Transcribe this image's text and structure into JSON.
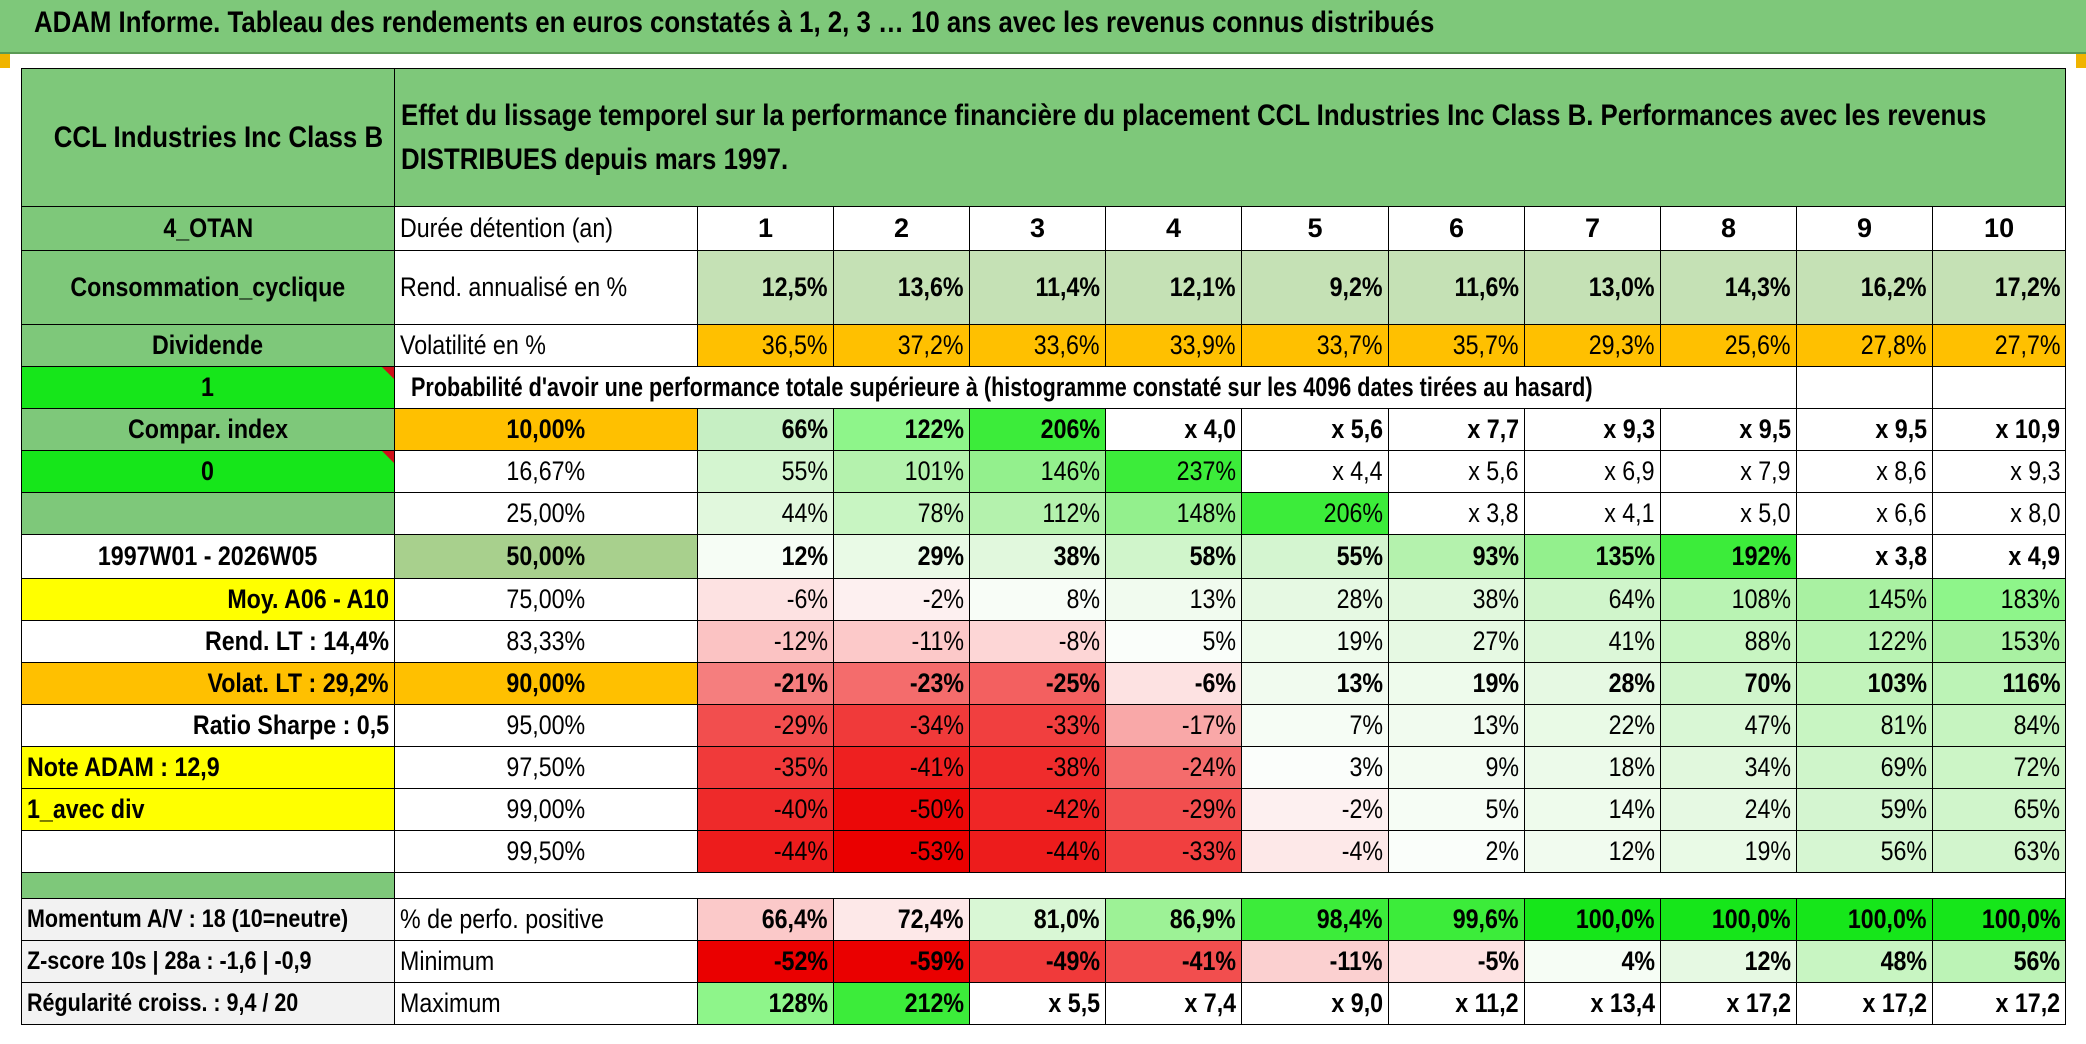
{
  "title": "ADAM Informe. Tableau des rendements en euros constatés à 1, 2, 3 … 10 ans avec les revenus connus distribués",
  "fund_name": "CCL Industries Inc Class B",
  "description": "Effet du lissage temporel sur la performance financière du placement CCL Industries Inc Class B. Performances avec les revenus DISTRIBUES depuis mars 1997.",
  "left_labels": {
    "code": "4_OTAN",
    "sector": "Consommation_cyclique",
    "type": "Dividende",
    "one": "1",
    "compar_index": "Compar. index",
    "zero": "0",
    "period": "1997W01 - 2026W05",
    "moy": "Moy. A06 - A10",
    "rend_lt": "Rend. LT :   14,4%",
    "volat_lt": "Volat. LT :   29,2%",
    "sharpe": "Ratio Sharpe :    0,5",
    "note": "Note ADAM : 12,9",
    "avec_div": "1_avec div",
    "momentum": "Momentum A/V : 18 (10=neutre)",
    "zscore": "Z-score 10s | 28a : -1,6 | -0,9",
    "regularite": "Régularité croiss. : 9,4 / 20"
  },
  "row_labels": {
    "duree": "Durée détention (an)",
    "rend": "Rend. annualisé en %",
    "volat": "Volatilité en %",
    "proba": "Probabilité d'avoir une performance totale supérieure à (histogramme constaté sur les 4096 dates tirées au hasard)",
    "perfo_pos": "% de perfo. positive",
    "minimum": "Minimum",
    "maximum": "Maximum"
  },
  "years": [
    "1",
    "2",
    "3",
    "4",
    "5",
    "6",
    "7",
    "8",
    "9",
    "10"
  ],
  "rend_values": [
    "12,5%",
    "13,6%",
    "11,4%",
    "12,1%",
    "9,2%",
    "11,6%",
    "13,0%",
    "14,3%",
    "16,2%",
    "17,2%"
  ],
  "volat_values": [
    "36,5%",
    "37,2%",
    "33,6%",
    "33,9%",
    "33,7%",
    "35,7%",
    "29,3%",
    "25,6%",
    "27,8%",
    "27,7%"
  ],
  "proba_rows": [
    {
      "level": "10,00%",
      "values": [
        "66%",
        "122%",
        "206%",
        "x 4,0",
        "x 5,6",
        "x 7,7",
        "x 9,3",
        "x 9,5",
        "x 9,5",
        "x 10,9"
      ]
    },
    {
      "level": "16,67%",
      "values": [
        "55%",
        "101%",
        "146%",
        "237%",
        "x 4,4",
        "x 5,6",
        "x 6,9",
        "x 7,9",
        "x 8,6",
        "x 9,3"
      ]
    },
    {
      "level": "25,00%",
      "values": [
        "44%",
        "78%",
        "112%",
        "148%",
        "206%",
        "x 3,8",
        "x 4,1",
        "x 5,0",
        "x 6,6",
        "x 8,0"
      ]
    },
    {
      "level": "50,00%",
      "values": [
        "12%",
        "29%",
        "38%",
        "58%",
        "55%",
        "93%",
        "135%",
        "192%",
        "x 3,8",
        "x 4,9"
      ]
    },
    {
      "level": "75,00%",
      "values": [
        "-6%",
        "-2%",
        "8%",
        "13%",
        "28%",
        "38%",
        "64%",
        "108%",
        "145%",
        "183%"
      ]
    },
    {
      "level": "83,33%",
      "values": [
        "-12%",
        "-11%",
        "-8%",
        "5%",
        "19%",
        "27%",
        "41%",
        "88%",
        "122%",
        "153%"
      ]
    },
    {
      "level": "90,00%",
      "values": [
        "-21%",
        "-23%",
        "-25%",
        "-6%",
        "13%",
        "19%",
        "28%",
        "70%",
        "103%",
        "116%"
      ]
    },
    {
      "level": "95,00%",
      "values": [
        "-29%",
        "-34%",
        "-33%",
        "-17%",
        "7%",
        "13%",
        "22%",
        "47%",
        "81%",
        "84%"
      ]
    },
    {
      "level": "97,50%",
      "values": [
        "-35%",
        "-41%",
        "-38%",
        "-24%",
        "3%",
        "9%",
        "18%",
        "34%",
        "69%",
        "72%"
      ]
    },
    {
      "level": "99,00%",
      "values": [
        "-40%",
        "-50%",
        "-42%",
        "-29%",
        "-2%",
        "5%",
        "14%",
        "24%",
        "59%",
        "65%"
      ]
    },
    {
      "level": "99,50%",
      "values": [
        "-44%",
        "-53%",
        "-44%",
        "-33%",
        "-4%",
        "2%",
        "12%",
        "19%",
        "56%",
        "63%"
      ]
    }
  ],
  "perfo_pos_values": [
    "66,4%",
    "72,4%",
    "81,0%",
    "86,9%",
    "98,4%",
    "99,6%",
    "100,0%",
    "100,0%",
    "100,0%",
    "100,0%"
  ],
  "minimum_values": [
    "-52%",
    "-59%",
    "-49%",
    "-41%",
    "-11%",
    "-5%",
    "4%",
    "12%",
    "48%",
    "56%"
  ],
  "maximum_values": [
    "128%",
    "212%",
    "x 5,5",
    "x 7,4",
    "x 9,0",
    "x 11,2",
    "x 13,4",
    "x 17,2",
    "x 17,2",
    "x 17,2"
  ],
  "cell_colors": {
    "proba": [
      [
        "#c6efc3",
        "#8ef58a",
        "#3cec3a",
        "#ffffff",
        "#ffffff",
        "#ffffff",
        "#ffffff",
        "#ffffff",
        "#ffffff",
        "#ffffff"
      ],
      [
        "#d4f5d0",
        "#b4f2ad",
        "#93f08d",
        "#3cec3a",
        "#ffffff",
        "#ffffff",
        "#ffffff",
        "#ffffff",
        "#ffffff",
        "#ffffff"
      ],
      [
        "#e1f8dd",
        "#c8f5c2",
        "#b4f2ad",
        "#93f08d",
        "#3cec3a",
        "#ffffff",
        "#ffffff",
        "#ffffff",
        "#ffffff",
        "#ffffff"
      ],
      [
        "#f6fdf5",
        "#e9faE6",
        "#e1f8dd",
        "#d0f5cb",
        "#d4f5d0",
        "#b4f2ad",
        "#93f08d",
        "#3cec3a",
        "#ffffff",
        "#ffffff"
      ],
      [
        "#fde2e2",
        "#fdf0f0",
        "#f8fdf7",
        "#f1fbef",
        "#e6f9e3",
        "#e1f8dd",
        "#d0f5cb",
        "#b9f3b3",
        "#a9f1a2",
        "#8ef58a"
      ],
      [
        "#fbc3c3",
        "#fcc9c9",
        "#fdd6d6",
        "#fafefa",
        "#eefbeC",
        "#e6f9e3",
        "#dcf7d8",
        "#c8f5c2",
        "#b9f3b3",
        "#a9f1a2"
      ],
      [
        "#f57e7e",
        "#f46c6c",
        "#f36060",
        "#fde2e2",
        "#f1fbef",
        "#eefbec",
        "#e6f9e3",
        "#d0f5cb",
        "#c2f4bb",
        "#bcf3b6"
      ],
      [
        "#f24e4e",
        "#f03a3a",
        "#f13f3f",
        "#f9a8a8",
        "#f6fdf5",
        "#f1fbef",
        "#e9faE6",
        "#d9f7d5",
        "#c8f5c2",
        "#c6f4c0"
      ],
      [
        "#f03a3a",
        "#ee2020",
        "#ef2c2c",
        "#f46c6c",
        "#fbfefb",
        "#f3fcf2",
        "#ecfaea",
        "#e1f8dd",
        "#cff5ca",
        "#ccf5c6"
      ],
      [
        "#ee2a2a",
        "#eb0808",
        "#ef2626",
        "#f24e4e",
        "#fdf0f0",
        "#f6fdf5",
        "#eefbec",
        "#e6f9e3",
        "#d4f5d0",
        "#d0f5cb"
      ],
      [
        "#ed1c1c",
        "#ea0000",
        "#ed1c1c",
        "#f13f3f",
        "#fde8e8",
        "#fafefa",
        "#f1fbef",
        "#e9faE6",
        "#d6f6d2",
        "#d2f5cd"
      ]
    ],
    "perfo_pos": [
      "#fbc9c9",
      "#fde8e8",
      "#d9f7d5",
      "#9df296",
      "#3cec3a",
      "#3cec3a",
      "#16e61a",
      "#16e61a",
      "#16e61a",
      "#16e61a"
    ],
    "minimum": [
      "#ea0000",
      "#ea0000",
      "#f03a3a",
      "#f24e4e",
      "#fbd0d0",
      "#fde2e2",
      "#f6fdf5",
      "#e6f9e3",
      "#c8f5c2",
      "#bcf3b6"
    ],
    "maximum": [
      "#8ef58a",
      "#3cec3a",
      "#ffffff",
      "#ffffff",
      "#ffffff",
      "#ffffff",
      "#ffffff",
      "#ffffff",
      "#ffffff",
      "#ffffff"
    ]
  }
}
